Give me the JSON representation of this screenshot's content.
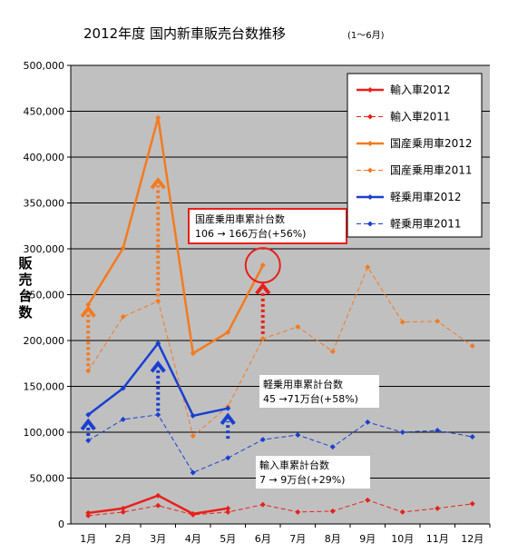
{
  "chart_data": {
    "type": "line",
    "title": "2012年度 国内新車販売台数推移",
    "subtitle": "(1〜6月)",
    "ylabel": "販売台数",
    "xlabel": "",
    "categories": [
      "1月",
      "2月",
      "3月",
      "4月",
      "5月",
      "6月",
      "7月",
      "8月",
      "9月",
      "10月",
      "11月",
      "12月"
    ],
    "y_ticks": [
      "0",
      "50,000",
      "100,000",
      "150,000",
      "200,000",
      "250,000",
      "300,000",
      "350,000",
      "400,000",
      "450,000",
      "500,000"
    ],
    "ylim": [
      0,
      500000
    ],
    "grid": true,
    "legend_position": "top-right",
    "series": [
      {
        "name": "輸入車2012",
        "color": "#e8201a",
        "style": "solid",
        "values": [
          12000,
          17000,
          31000,
          11000,
          17000,
          null,
          null,
          null,
          null,
          null,
          null,
          null
        ]
      },
      {
        "name": "輸入車2011",
        "color": "#e8201a",
        "style": "dashed",
        "values": [
          9000,
          13000,
          20000,
          10000,
          13000,
          21000,
          13000,
          14000,
          26000,
          13000,
          17000,
          22000
        ]
      },
      {
        "name": "国産乗用車2012",
        "color": "#f47a1f",
        "style": "solid",
        "values": [
          239000,
          301000,
          443000,
          186000,
          209000,
          282000,
          null,
          null,
          null,
          null,
          null,
          null
        ]
      },
      {
        "name": "国産乗用車2011",
        "color": "#f47a1f",
        "style": "dashed",
        "values": [
          167000,
          226000,
          243000,
          96000,
          128000,
          202000,
          215000,
          188000,
          280000,
          220000,
          221000,
          194000
        ]
      },
      {
        "name": "軽乗用車2012",
        "color": "#1a3fd0",
        "style": "solid",
        "values": [
          119000,
          148000,
          197000,
          118000,
          126000,
          null,
          null,
          null,
          null,
          null,
          null,
          null
        ]
      },
      {
        "name": "軽乗用車2011",
        "color": "#1a3fd0",
        "style": "dashed",
        "values": [
          91000,
          114000,
          119000,
          56000,
          72000,
          92000,
          97000,
          84000,
          111000,
          100000,
          102000,
          95000
        ]
      }
    ],
    "annotations": [
      {
        "line1": "国産乗用車累計台数",
        "line2": "106 → 166万台(+56%)",
        "boxed": true
      },
      {
        "line1": "軽乗用車累計台数",
        "line2": "45 →71万台(+58%)",
        "boxed": false
      },
      {
        "line1": "輸入車累計台数",
        "line2": "7 → 9万台(+29%)",
        "boxed": false
      }
    ],
    "arrows": [
      {
        "color": "#f47a1f",
        "month_index": 0,
        "from": 172000,
        "to": 235000
      },
      {
        "color": "#f47a1f",
        "month_index": 2,
        "from": 248000,
        "to": 375000
      },
      {
        "color": "#e8201a",
        "month_index": 5,
        "from": 207000,
        "to": 260000
      },
      {
        "color": "#1a3fd0",
        "month_index": 0,
        "from": 96000,
        "to": 112000
      },
      {
        "color": "#1a3fd0",
        "month_index": 2,
        "from": 123000,
        "to": 175000
      },
      {
        "color": "#1a3fd0",
        "month_index": 4,
        "from": 93000,
        "to": 118000
      }
    ],
    "highlight": {
      "month_index": 5,
      "value": 282000,
      "color": "#e8201a"
    }
  }
}
